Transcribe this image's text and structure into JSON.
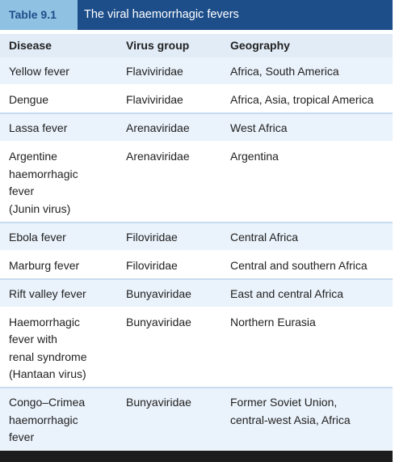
{
  "title": {
    "label": "Table 9.1",
    "text": "The viral haemorrhagic fevers"
  },
  "columns": [
    "Disease",
    "Virus group",
    "Geography"
  ],
  "rows": [
    {
      "disease": [
        "Yellow fever"
      ],
      "virus": "Flaviviridae",
      "geo": [
        "Africa, South America"
      ]
    },
    {
      "disease": [
        "Dengue"
      ],
      "virus": "Flaviviridae",
      "geo": [
        "Africa, Asia, tropical America"
      ]
    },
    {
      "disease": [
        "Lassa fever"
      ],
      "virus": "Arenaviridae",
      "geo": [
        "West Africa"
      ]
    },
    {
      "disease": [
        "Argentine",
        "haemorrhagic",
        "fever",
        "(Junin virus)"
      ],
      "virus": "Arenaviridae",
      "geo": [
        "Argentina"
      ]
    },
    {
      "disease": [
        "Ebola fever"
      ],
      "virus": "Filoviridae",
      "geo": [
        "Central Africa"
      ]
    },
    {
      "disease": [
        "Marburg fever"
      ],
      "virus": "Filoviridae",
      "geo": [
        "Central and southern Africa"
      ]
    },
    {
      "disease": [
        "Rift valley fever"
      ],
      "virus": "Bunyaviridae",
      "geo": [
        "East and central Africa"
      ]
    },
    {
      "disease": [
        "Haemorrhagic",
        "fever with",
        "renal syndrome",
        "(Hantaan virus)"
      ],
      "virus": "Bunyaviridae",
      "geo": [
        "Northern Eurasia"
      ]
    },
    {
      "disease": [
        "Congo–Crimea",
        "haemorrhagic",
        "fever"
      ],
      "virus": "Bunyaviridae",
      "geo": [
        "Former Soviet Union,",
        "central-west Asia, Africa"
      ]
    }
  ],
  "colors": {
    "title_label_bg": "#8fc1e3",
    "title_bg": "#1d4e8a",
    "header_bg": "#e1ecf7",
    "row_alt_bg": "#eaf2fb",
    "footer": "#1c1c1c"
  }
}
